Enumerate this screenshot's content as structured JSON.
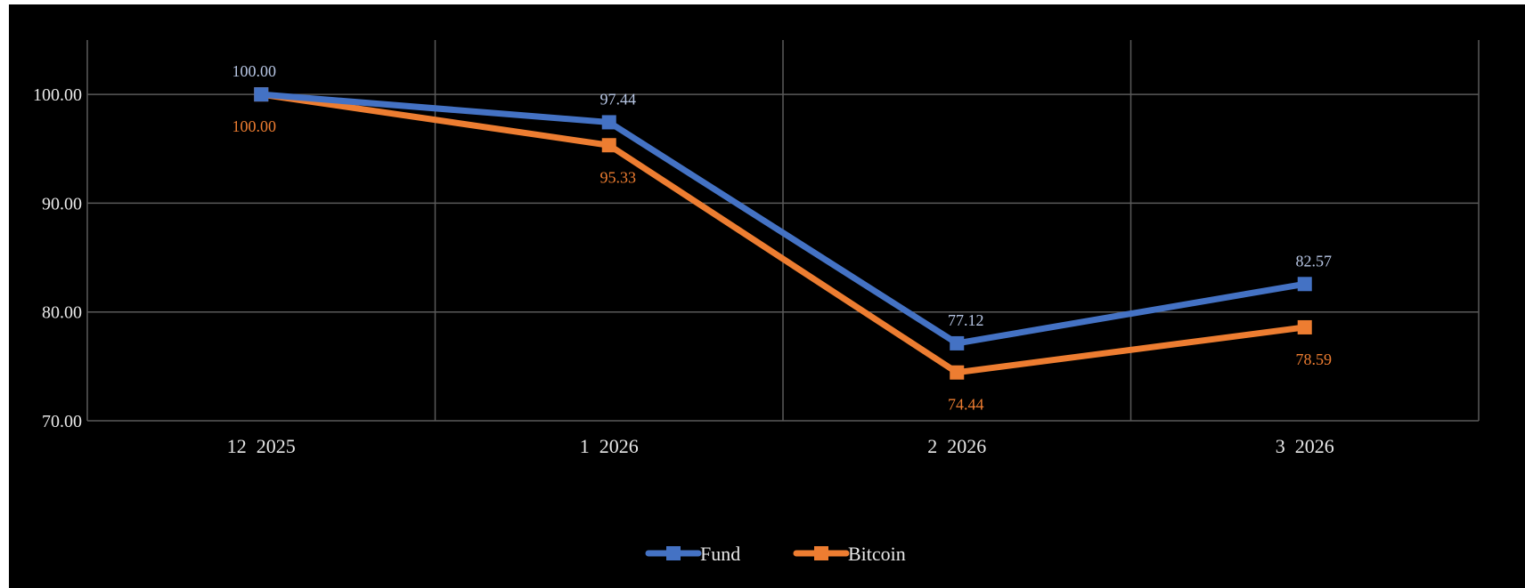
{
  "chart_data": {
    "type": "line",
    "title": "",
    "xlabel": "",
    "ylabel": "",
    "categories": [
      "12  2025",
      "1  2026",
      "2  2026",
      "3  2026"
    ],
    "series": [
      {
        "name": "Fund",
        "color": "#4472c4",
        "values": [
          100.0,
          97.44,
          77.12,
          82.57
        ],
        "labels": [
          "100.00",
          "97.44",
          "77.12",
          "82.57"
        ],
        "label_color": "#b7c6e4",
        "label_position": "above"
      },
      {
        "name": "Bitcoin",
        "color": "#ed7d31",
        "values": [
          100.0,
          95.33,
          74.44,
          78.59
        ],
        "labels": [
          "100.00",
          "95.33",
          "74.44",
          "78.59"
        ],
        "label_color": "#ed7d31",
        "label_position": "below"
      }
    ],
    "ylim": [
      70,
      105
    ],
    "yticks": [
      70,
      80,
      90,
      100
    ],
    "ytick_labels": [
      "70.00",
      "80.00",
      "90.00",
      "100.00"
    ],
    "grid": true,
    "legend_placement": "bottom-center",
    "marker": "square",
    "background": "#000000"
  }
}
